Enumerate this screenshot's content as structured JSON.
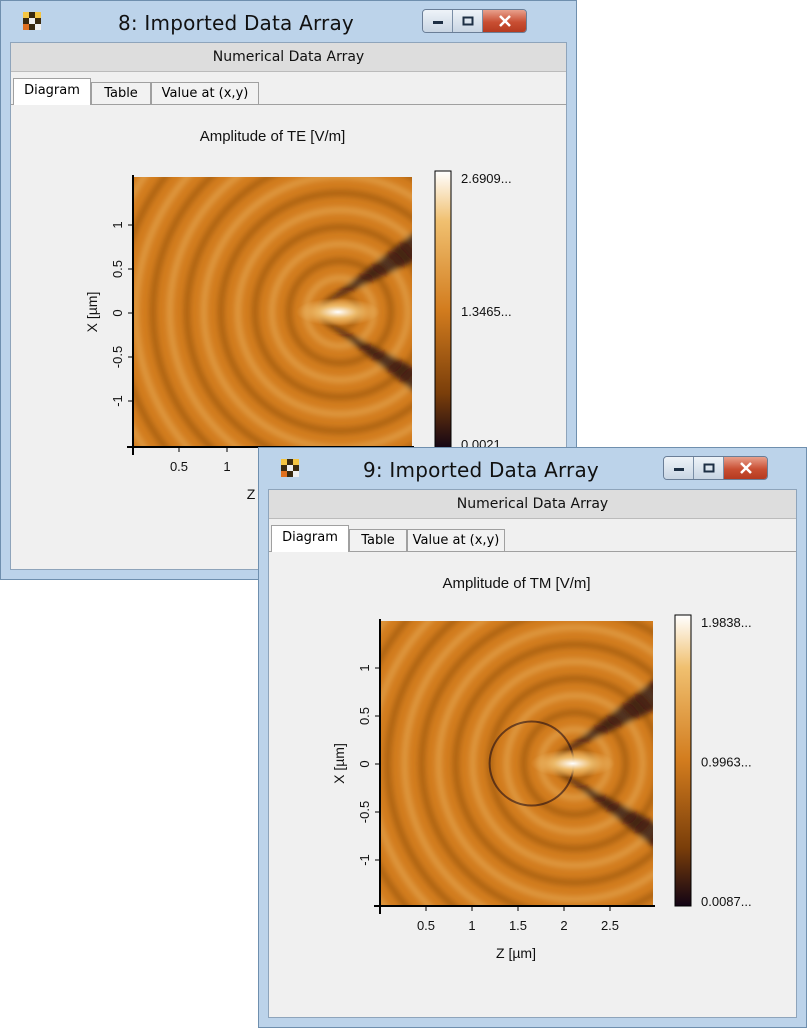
{
  "windows": [
    {
      "id": "win8",
      "title": "8: Imported Data Array",
      "header": "Numerical Data Array",
      "tabs": [
        "Diagram",
        "Table",
        "Value at (x,y)"
      ],
      "active_tab": "Diagram"
    },
    {
      "id": "win9",
      "title": "9: Imported Data Array",
      "header": "Numerical Data Array",
      "tabs": [
        "Diagram",
        "Table",
        "Value at (x,y)"
      ],
      "active_tab": "Diagram"
    }
  ],
  "chart_data": [
    {
      "type": "heatmap",
      "title": "Amplitude of TE  [V/m]",
      "xlabel": "Z",
      "ylabel": "X [µm]",
      "x_ticks": [
        "0.5",
        "1"
      ],
      "y_ticks": [
        "1",
        "0.5",
        "0",
        "-0.5",
        "-1"
      ],
      "colorbar_labels": [
        "2.6909...",
        "1.3465...",
        "0.0021..."
      ],
      "vmin": 0.0021,
      "vmax": 2.6909,
      "colormap": [
        "#ffffff",
        "#f0c070",
        "#d27c1e",
        "#7a3e0a",
        "#120414"
      ]
    },
    {
      "type": "heatmap",
      "title": "Amplitude of TM  [V/m]",
      "xlabel": "Z [µm]",
      "ylabel": "X [µm]",
      "x_ticks": [
        "0.5",
        "1",
        "1.5",
        "2",
        "2.5"
      ],
      "y_ticks": [
        "1",
        "0.5",
        "0",
        "-0.5",
        "-1"
      ],
      "colorbar_labels": [
        "1.9838...",
        "0.9963...",
        "0.0087..."
      ],
      "vmin": 0.0087,
      "vmax": 1.9838,
      "colormap": [
        "#ffffff",
        "#f0c070",
        "#d27c1e",
        "#7a3e0a",
        "#120414"
      ]
    }
  ]
}
